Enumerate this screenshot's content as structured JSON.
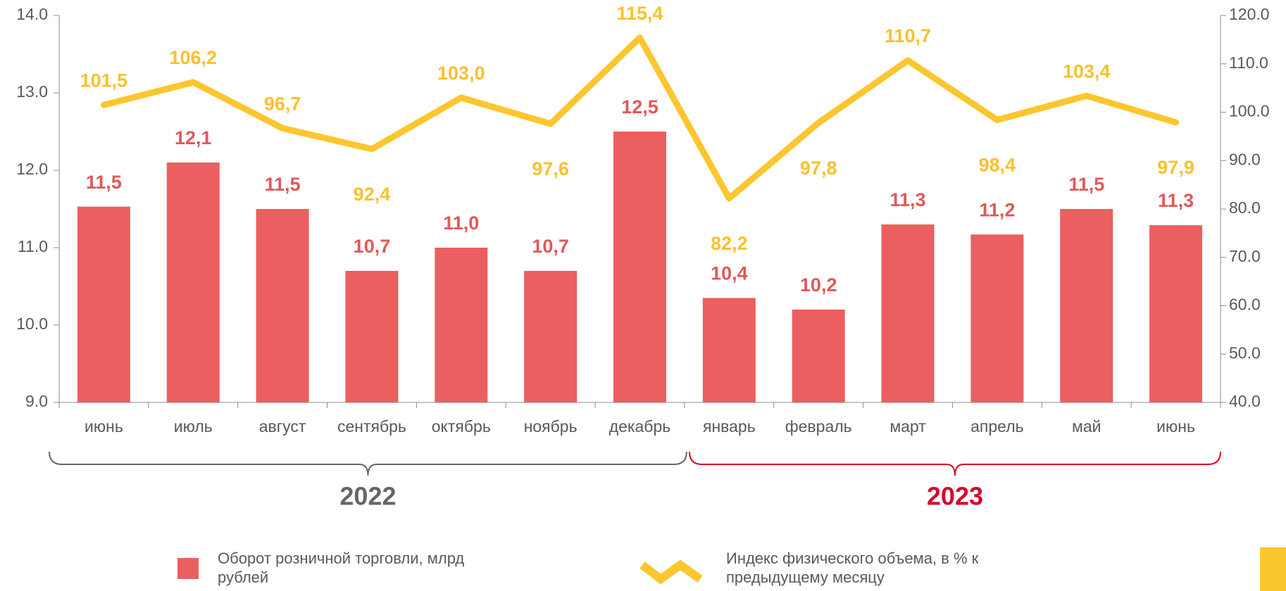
{
  "chart_data": {
    "type": "bar_line",
    "categories": [
      "июнь",
      "июль",
      "август",
      "сентябрь",
      "октябрь",
      "ноябрь",
      "декабрь",
      "январь",
      "февраль",
      "март",
      "апрель",
      "май",
      "июнь"
    ],
    "groups": [
      {
        "label": "2022",
        "color": "#666666"
      },
      {
        "label": "2023",
        "color": "#d7062a"
      }
    ],
    "series": [
      {
        "name": "Оборот розничной торговли, млрд рублей",
        "type": "bar",
        "color": "#eb5f60",
        "label_color": "#e0585a",
        "values": [
          11.53,
          12.1,
          11.5,
          10.7,
          11.0,
          10.7,
          12.5,
          10.35,
          10.2,
          11.3,
          11.17,
          11.5,
          11.29
        ],
        "value_labels": [
          "11,5",
          "12,1",
          "11,5",
          "10,7",
          "11,0",
          "10,7",
          "12,5",
          "10,4",
          "10,2",
          "11,3",
          "11,2",
          "11,5",
          "11,3"
        ]
      },
      {
        "name": "Индекс физического объема, в % к предыдущему месяцу",
        "type": "line",
        "axis": "y2",
        "color": "#fcc62e",
        "label_color": "#fbc02d",
        "values": [
          101.5,
          106.2,
          96.7,
          92.4,
          103.0,
          97.6,
          115.4,
          82.2,
          97.8,
          110.7,
          98.4,
          103.4,
          97.9
        ],
        "value_labels": [
          "101,5",
          "106,2",
          "96,7",
          "92,4",
          "103,0",
          "97,6",
          "115,4",
          "82,2",
          "97,8",
          "110,7",
          "98,4",
          "103,4",
          "97,9"
        ]
      }
    ],
    "ylim": [
      9,
      14
    ],
    "yticks": [
      {
        "value": 9,
        "label": "9.0"
      },
      {
        "value": 10,
        "label": "10.0"
      },
      {
        "value": 11,
        "label": "11.0"
      },
      {
        "value": 12,
        "label": "12.0"
      },
      {
        "value": 13,
        "label": "13.0"
      },
      {
        "value": 14,
        "label": "14.0"
      }
    ],
    "y2lim": [
      40,
      120
    ],
    "y2ticks": [
      {
        "value": 40,
        "label": "40.0"
      },
      {
        "value": 50,
        "label": "50.0"
      },
      {
        "value": 60,
        "label": "60.0"
      },
      {
        "value": 70,
        "label": "70.0"
      },
      {
        "value": 80,
        "label": "80.0"
      },
      {
        "value": 90,
        "label": "90.0"
      },
      {
        "value": 100,
        "label": "100.0"
      },
      {
        "value": 110,
        "label": "110.0"
      },
      {
        "value": 120,
        "label": "120.0"
      }
    ],
    "grid": false
  }
}
